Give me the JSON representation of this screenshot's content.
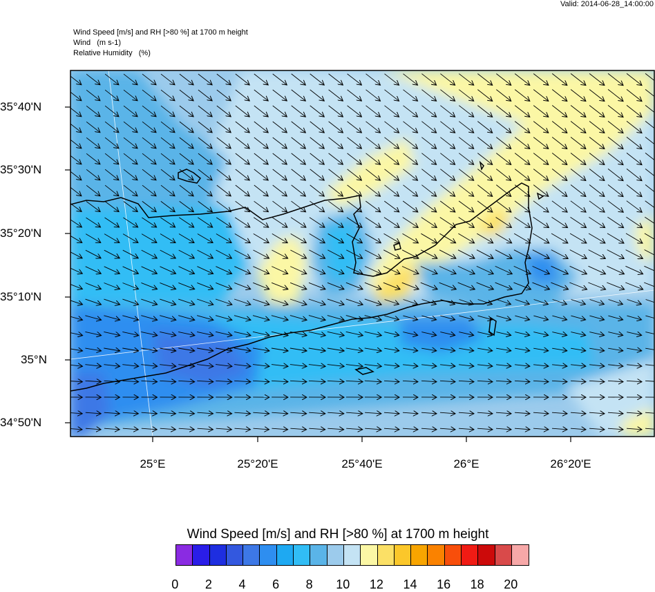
{
  "valid_time": "Valid: 2014-06-28_14:00:00",
  "header": {
    "line1": "Wind Speed [m/s] and RH [>80 %] at 1700 m height",
    "line2": "Wind   (m s-1)",
    "line3": "Relative Humidity   (%)"
  },
  "axes": {
    "lat_labels": [
      "35°40'N",
      "35°30'N",
      "35°20'N",
      "35°10'N",
      "35°N",
      "34°50'N"
    ],
    "lon_labels": [
      "25°E",
      "25°20'E",
      "25°40'E",
      "26°E",
      "26°20'E"
    ]
  },
  "colorbar": {
    "title": "Wind Speed [m/s] and RH [>80 %] at 1700 m height",
    "labels": [
      "0",
      "2",
      "4",
      "6",
      "8",
      "10",
      "12",
      "14",
      "16",
      "18",
      "20"
    ],
    "colors": [
      "#8a2be2",
      "#2a1de8",
      "#1e2ee0",
      "#3358df",
      "#3d78e6",
      "#2e8ef0",
      "#1ea9f2",
      "#31bdf5",
      "#5ab4e8",
      "#9ccbec",
      "#c4e3f4",
      "#fbf7a5",
      "#fbe066",
      "#fbc72a",
      "#f8a500",
      "#fa8200",
      "#f84e0b",
      "#f01b14",
      "#cc0a0a",
      "#d94a4a",
      "#f7a8a8"
    ]
  },
  "map": {
    "fill_colors": {
      "base": "#9ccbec",
      "light": "#c4e3f4",
      "mid": "#5ab4e8",
      "strong": "#31bdf5",
      "deep": "#2e8ef0",
      "deepest": "#3d78e6",
      "yellow": "#fbf7a5",
      "gold": "#fbe066"
    },
    "wind_arrows": "black vectors, predominantly NW→SE in the north and W→E in the south",
    "coastline": "black"
  }
}
